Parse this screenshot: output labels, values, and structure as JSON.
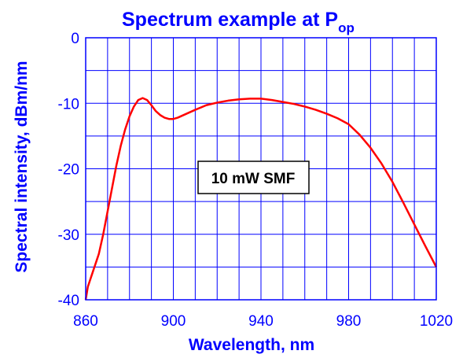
{
  "chart_data": {
    "type": "line",
    "title": "Spectrum example at P",
    "title_subscript": "op",
    "xlabel": "Wavelength, nm",
    "ylabel": "Spectral intensity, dBm/nm",
    "xlim": [
      860,
      1020
    ],
    "ylim": [
      -40,
      0
    ],
    "x_ticks": [
      860,
      900,
      940,
      980,
      1020
    ],
    "y_ticks": [
      0,
      -10,
      -20,
      -30,
      -40
    ],
    "x_minor_step": 10,
    "y_minor_step": 5,
    "grid": true,
    "annotation": "10 mW SMF",
    "series": [
      {
        "color": "#ff0000",
        "x": [
          860,
          861,
          862,
          863,
          864,
          865,
          866,
          868,
          870,
          872,
          874,
          876,
          878,
          880,
          882,
          884,
          886,
          888,
          890,
          892,
          894,
          896,
          898,
          900,
          902,
          904,
          906,
          908,
          910,
          915,
          920,
          925,
          930,
          935,
          940,
          945,
          950,
          955,
          960,
          965,
          970,
          975,
          980,
          985,
          990,
          995,
          1000,
          1005,
          1010,
          1015,
          1020
        ],
        "y": [
          -40,
          -38,
          -37,
          -36,
          -35,
          -34,
          -33,
          -30,
          -26.5,
          -23,
          -19.5,
          -16.5,
          -14,
          -12,
          -10.5,
          -9.5,
          -9.2,
          -9.5,
          -10.3,
          -11.2,
          -11.8,
          -12.2,
          -12.4,
          -12.4,
          -12.2,
          -11.9,
          -11.6,
          -11.3,
          -11.0,
          -10.3,
          -9.9,
          -9.6,
          -9.4,
          -9.3,
          -9.3,
          -9.5,
          -9.8,
          -10.1,
          -10.5,
          -11,
          -11.6,
          -12.3,
          -13.2,
          -14.8,
          -16.8,
          -19.2,
          -22,
          -25.2,
          -28.5,
          -31.8,
          -35
        ]
      }
    ]
  }
}
